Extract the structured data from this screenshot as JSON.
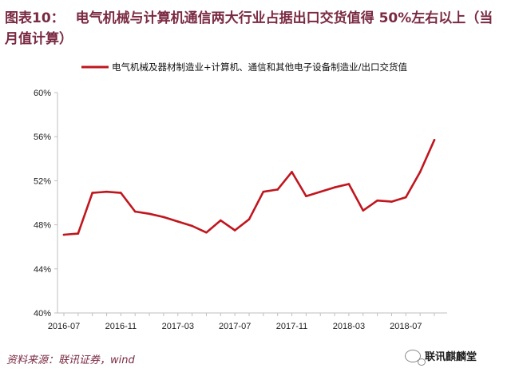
{
  "figure": {
    "label": "图表10：",
    "title": "电气机械与计算机通信两大行业占据出口交货值得 50%左右以上（当月值计算）",
    "source": "资料来源：联讯证券，wind",
    "watermark": "联讯麒麟堂"
  },
  "colors": {
    "line": "#c0161e",
    "title": "#7a2a42",
    "axis": "#bfbfbf"
  },
  "chart_data": {
    "type": "line",
    "x": [
      "2016-07",
      "2016-08",
      "2016-09",
      "2016-10",
      "2016-11",
      "2016-12",
      "2017-01",
      "2017-02",
      "2017-03",
      "2017-04",
      "2017-05",
      "2017-06",
      "2017-07",
      "2017-08",
      "2017-09",
      "2017-10",
      "2017-11",
      "2017-12",
      "2018-01",
      "2018-02",
      "2018-03",
      "2018-04",
      "2018-05",
      "2018-06",
      "2018-07",
      "2018-08",
      "2018-09"
    ],
    "series": [
      {
        "name": "电气机械及器材制造业+计算机、通信和其他电子设备制造业/出口交货值",
        "values": [
          47.1,
          47.2,
          50.9,
          51.0,
          50.9,
          49.2,
          49.0,
          48.7,
          48.3,
          47.9,
          47.3,
          48.4,
          47.5,
          48.5,
          51.0,
          51.2,
          52.8,
          50.6,
          51.0,
          51.4,
          51.7,
          49.3,
          50.2,
          50.1,
          50.5,
          52.8,
          55.7
        ]
      }
    ],
    "x_tick_labels": [
      "2016-07",
      "2016-11",
      "2017-03",
      "2017-07",
      "2017-11",
      "2018-03",
      "2018-07"
    ],
    "y_ticks": [
      40,
      44,
      48,
      52,
      56,
      60
    ],
    "y_tick_labels": [
      "40%",
      "44%",
      "48%",
      "52%",
      "56%",
      "60%"
    ],
    "ylim": [
      40,
      60
    ],
    "grid": false,
    "legend_position": "top-left"
  }
}
